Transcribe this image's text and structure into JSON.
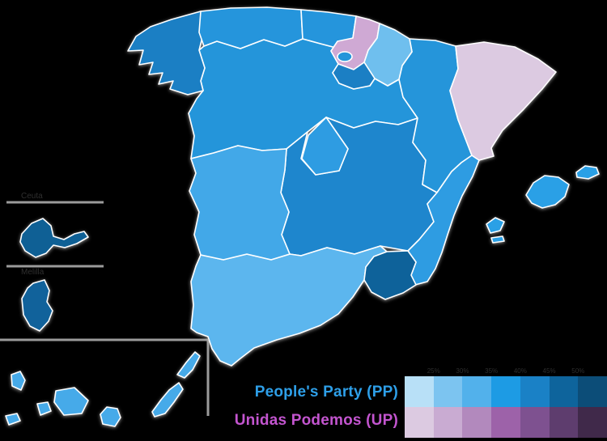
{
  "map": {
    "description": "Spain election results by autonomous community",
    "regions": [
      {
        "id": "castile_leon",
        "name": "Castile and León",
        "color": "#2495da"
      },
      {
        "id": "castilla_la_mancha",
        "name": "Castilla-La Mancha",
        "color": "#1e86cd"
      },
      {
        "id": "andalusia",
        "name": "Andalusia",
        "color": "#5cb6ee"
      },
      {
        "id": "extremadura",
        "name": "Extremadura",
        "color": "#42a8e8"
      },
      {
        "id": "aragon",
        "name": "Aragon",
        "color": "#2595da"
      },
      {
        "id": "valencia",
        "name": "Valencian Community",
        "color": "#2e9ce2"
      },
      {
        "id": "catalonia",
        "name": "Catalonia",
        "color": "#dccae1"
      },
      {
        "id": "galicia",
        "name": "Galicia",
        "color": "#1b7fc4"
      },
      {
        "id": "asturias",
        "name": "Asturias",
        "color": "#2595dc"
      },
      {
        "id": "cantabria",
        "name": "Cantabria",
        "color": "#2595dc"
      },
      {
        "id": "basque_country",
        "name": "Basque Country",
        "color": "#cfa9d4"
      },
      {
        "id": "navarre",
        "name": "Navarre",
        "color": "#6fbfee"
      },
      {
        "id": "la_rioja",
        "name": "La Rioja",
        "color": "#1b7fc4"
      },
      {
        "id": "madrid",
        "name": "Community of Madrid",
        "color": "#2e9ce2"
      },
      {
        "id": "murcia",
        "name": "Region of Murcia",
        "color": "#0e629a"
      },
      {
        "id": "balearic_islands",
        "name": "Balearic Islands",
        "color": "#2aa0e6"
      },
      {
        "id": "canary_islands",
        "name": "Canary Islands",
        "color": "#46aae9"
      },
      {
        "id": "ceuta",
        "name": "Ceuta",
        "color": "#0f6095"
      },
      {
        "id": "melilla",
        "name": "Melilla",
        "color": "#11629b"
      }
    ],
    "border_color": "#ffffff"
  },
  "insets": {
    "ceuta_label": "Ceuta",
    "melilla_label": "Melilla"
  },
  "legend": {
    "parties": [
      {
        "label": "People's Party (PP)",
        "label_color": "#2e9fe8",
        "shades": [
          "#b8e0f7",
          "#7cc4f0",
          "#52b1eb",
          "#1d9be4",
          "#1a81c6",
          "#0e649c",
          "#0c4d78"
        ]
      },
      {
        "label": "Unidas Podemos (UP)",
        "label_color": "#c355cf",
        "shades": [
          "#dccae1",
          "#c9abd2",
          "#b289bd",
          "#9d62a9",
          "#7e5190",
          "#5e3d6e",
          "#40294a"
        ]
      }
    ],
    "thresholds": [
      "25%",
      "30%",
      "35%",
      "40%",
      "45%",
      "50%"
    ]
  }
}
